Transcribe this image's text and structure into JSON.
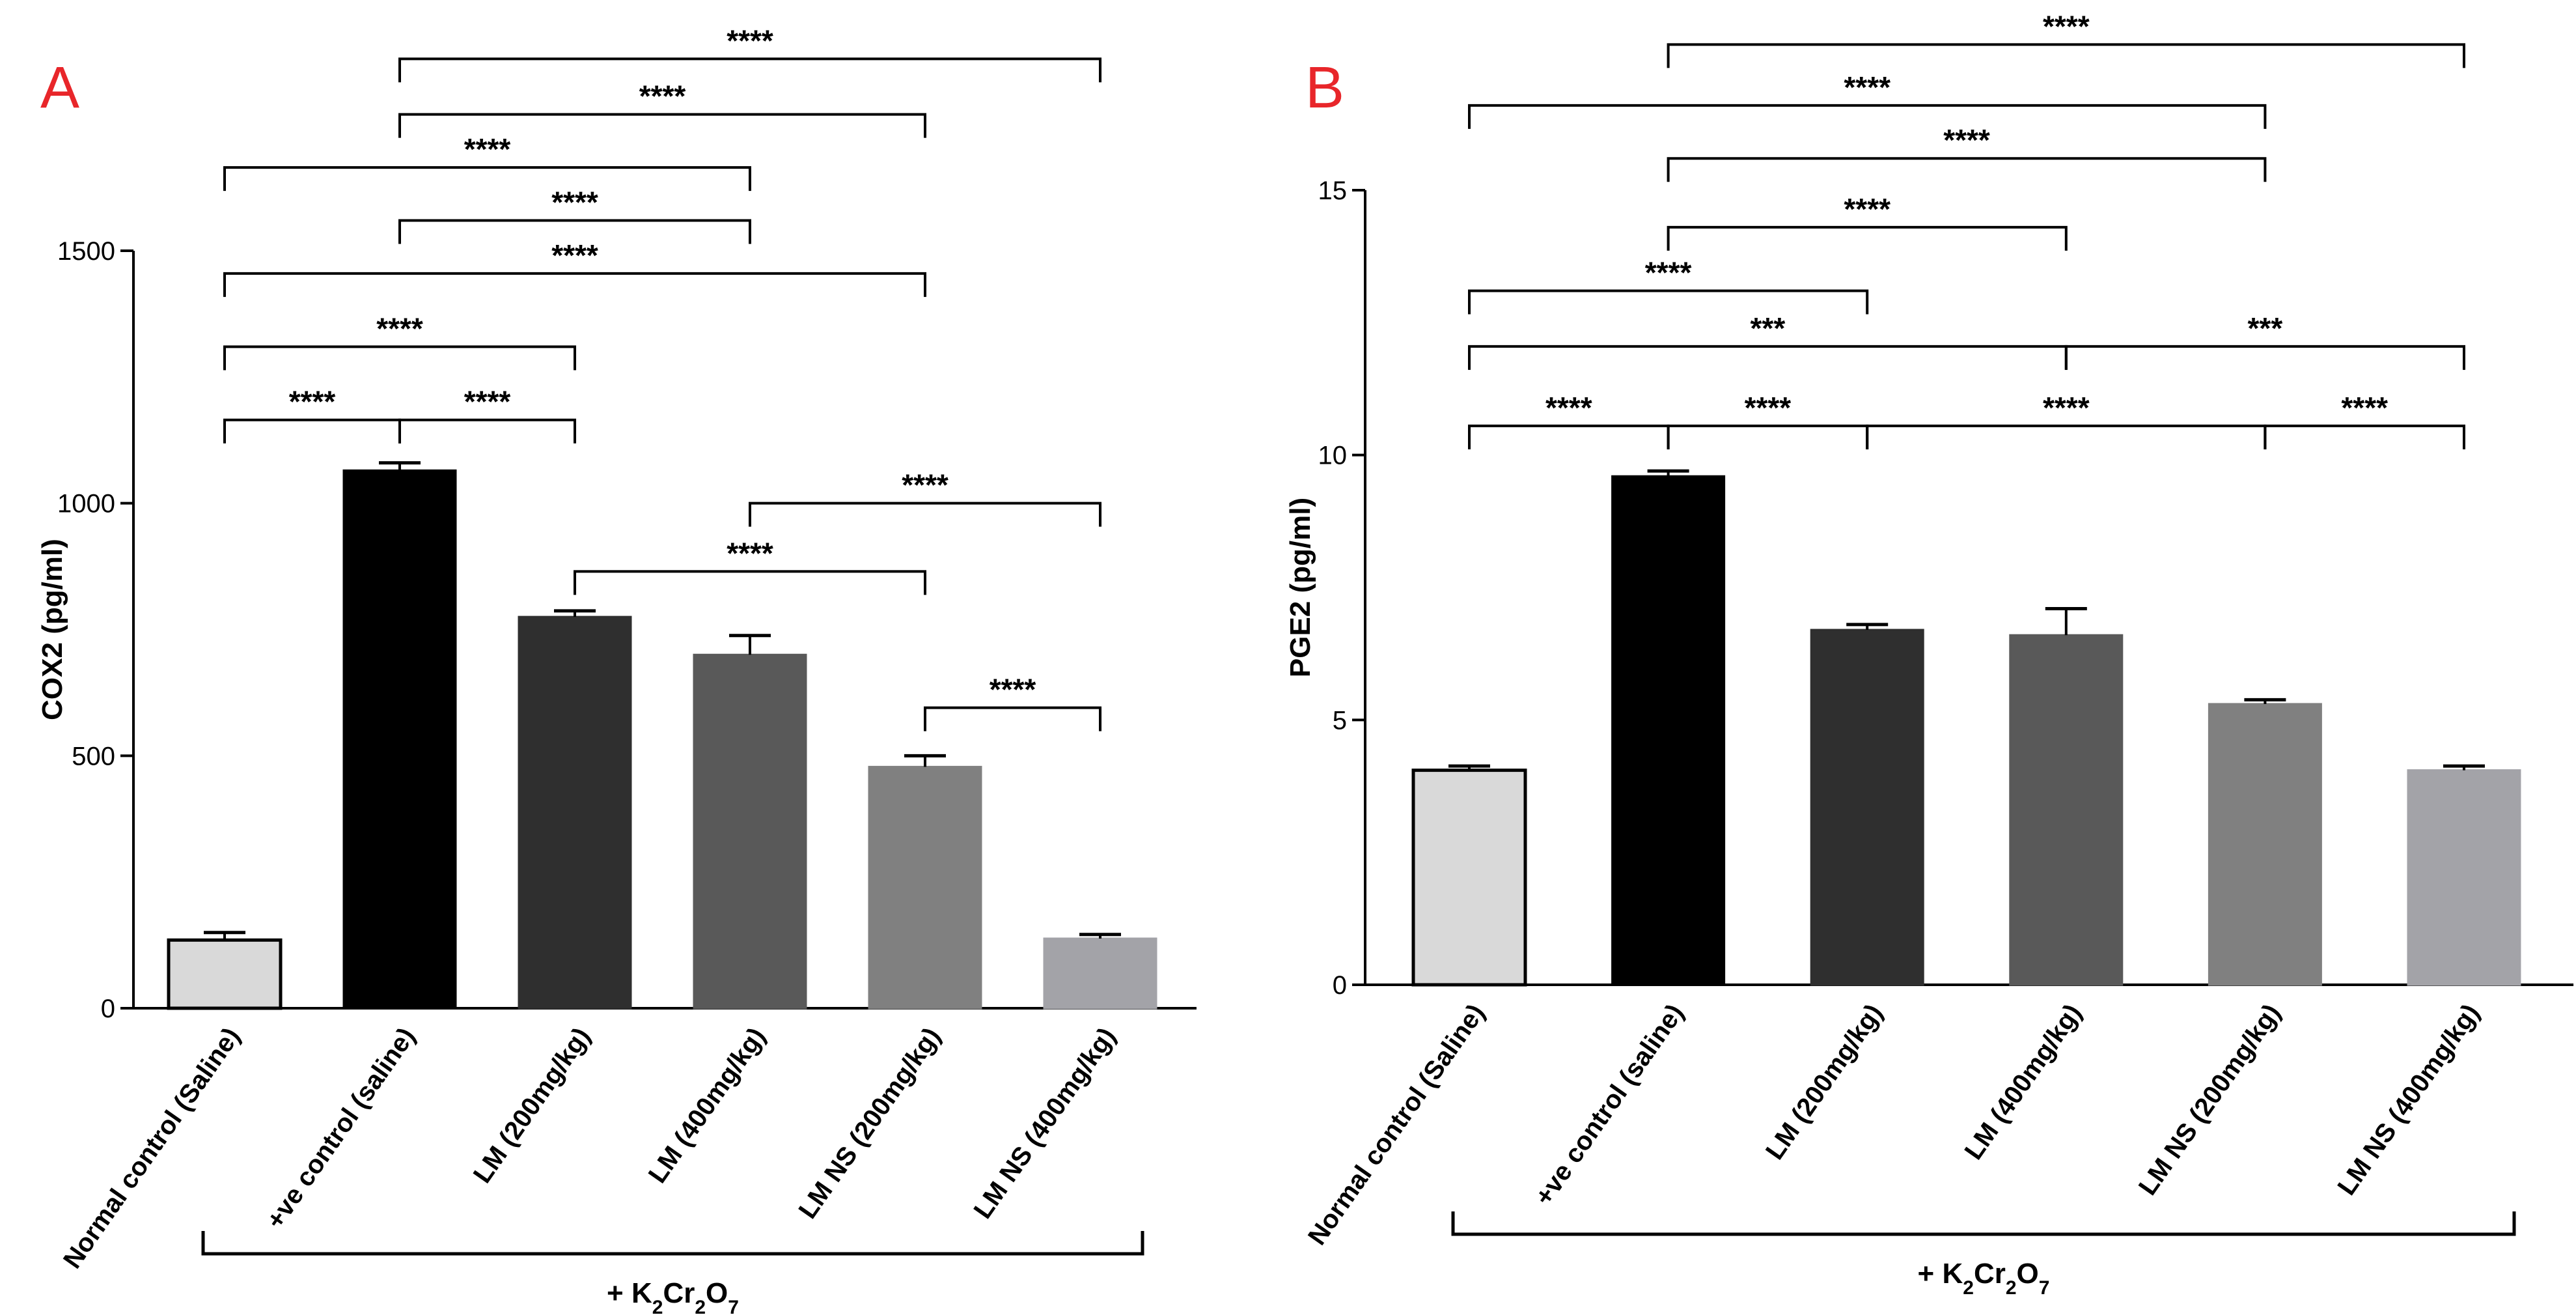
{
  "chart_data": [
    {
      "panel_label": "A",
      "type": "bar",
      "ylabel": "COX2 (pg/ml)",
      "ylim": [
        0,
        1500
      ],
      "yticks": [
        0,
        500,
        1000,
        1500
      ],
      "categories": [
        "Normal control (Saline)",
        "+ve control (saline)",
        "LM (200mg/kg)",
        "LM (400mg/kg)",
        "LM NS (200mg/kg)",
        "LM NS (400mg/kg)"
      ],
      "values": [
        135,
        1065,
        775,
        700,
        478,
        138
      ],
      "errors": [
        15,
        15,
        12,
        38,
        22,
        8
      ],
      "bar_colors": [
        "#d9d9d9",
        "#000000",
        "#2f2f2f",
        "#595959",
        "#808080",
        "#a3a3a8"
      ],
      "group_label": "+ K2Cr2O7",
      "comparisons": [
        {
          "from": 0,
          "to": 1,
          "label": "****",
          "y": 1165
        },
        {
          "from": 1,
          "to": 2,
          "label": "****",
          "y": 1165
        },
        {
          "from": 0,
          "to": 2,
          "label": "****",
          "y": 1310
        },
        {
          "from": 0,
          "to": 4,
          "label": "****",
          "y": 1455
        },
        {
          "from": 1,
          "to": 3,
          "label": "****",
          "y": 1560
        },
        {
          "from": 0,
          "to": 3,
          "label": "****",
          "y": 1665
        },
        {
          "from": 1,
          "to": 4,
          "label": "****",
          "y": 1770
        },
        {
          "from": 1,
          "to": 5,
          "label": "****",
          "y": 1880
        },
        {
          "from": 2,
          "to": 4,
          "label": "****",
          "y": 865
        },
        {
          "from": 3,
          "to": 5,
          "label": "****",
          "y": 1000
        },
        {
          "from": 4,
          "to": 5,
          "label": "****",
          "y": 595
        }
      ]
    },
    {
      "panel_label": "B",
      "type": "bar",
      "ylabel": "PGE2 (pg/ml)",
      "ylim": [
        0,
        15
      ],
      "yticks": [
        0,
        5,
        10,
        15
      ],
      "categories": [
        "Normal control (Saline)",
        "+ve control (saline)",
        "LM (200mg/kg)",
        "LM (400mg/kg)",
        "LM NS (200mg/kg)",
        "LM NS (400mg/kg)"
      ],
      "values": [
        4.05,
        9.6,
        6.7,
        6.6,
        5.3,
        4.05
      ],
      "errors": [
        0.08,
        0.1,
        0.1,
        0.5,
        0.08,
        0.08
      ],
      "bar_colors": [
        "#d9d9d9",
        "#000000",
        "#2f2f2f",
        "#595959",
        "#808080",
        "#a3a3a8"
      ],
      "group_label": "+ K2Cr2O7",
      "comparisons": [
        {
          "from": 0,
          "to": 1,
          "label": "****",
          "y": 10.55
        },
        {
          "from": 1,
          "to": 2,
          "label": "****",
          "y": 10.55
        },
        {
          "from": 2,
          "to": 4,
          "label": "****",
          "y": 10.55
        },
        {
          "from": 4,
          "to": 5,
          "label": "****",
          "y": 10.55
        },
        {
          "from": 0,
          "to": 3,
          "label": "***",
          "y": 12.05
        },
        {
          "from": 3,
          "to": 5,
          "label": "***",
          "y": 12.05
        },
        {
          "from": 0,
          "to": 2,
          "label": "****",
          "y": 13.1
        },
        {
          "from": 1,
          "to": 3,
          "label": "****",
          "y": 14.3
        },
        {
          "from": 1,
          "to": 4,
          "label": "****",
          "y": 15.6
        },
        {
          "from": 0,
          "to": 4,
          "label": "****",
          "y": 16.6
        },
        {
          "from": 1,
          "to": 5,
          "label": "****",
          "y": 17.75
        }
      ]
    }
  ]
}
